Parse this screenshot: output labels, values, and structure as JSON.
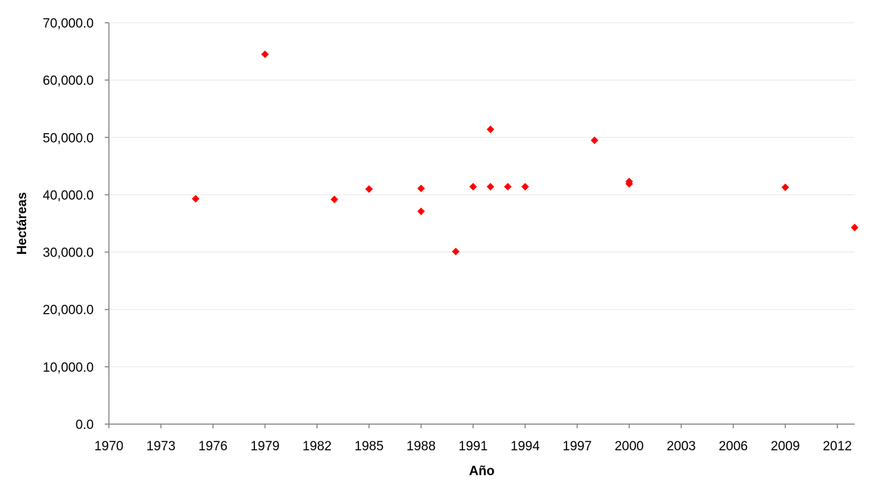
{
  "chart_data": {
    "type": "scatter",
    "title": "",
    "xlabel": "Año",
    "ylabel": "Hectáreas",
    "xlim": [
      1970,
      2013
    ],
    "ylim": [
      0,
      70000
    ],
    "x_ticks": [
      1970,
      1973,
      1976,
      1979,
      1982,
      1985,
      1988,
      1991,
      1994,
      1997,
      2000,
      2003,
      2006,
      2009,
      2012
    ],
    "x_tick_labels": [
      "1970",
      "1973",
      "1976",
      "1979",
      "1982",
      "1985",
      "1988",
      "1991",
      "1994",
      "1997",
      "2000",
      "2003",
      "2006",
      "2009",
      "2012"
    ],
    "y_ticks": [
      0,
      10000,
      20000,
      30000,
      40000,
      50000,
      60000,
      70000
    ],
    "y_tick_labels": [
      "0.0",
      "10,000.0",
      "20,000.0",
      "30,000.0",
      "40,000.0",
      "50,000.0",
      "60,000.0",
      "70,000.0"
    ],
    "grid": "horizontal",
    "legend": "none",
    "marker": "diamond",
    "marker_color": "#FF0000",
    "series": [
      {
        "x": [
          1975,
          1979,
          1983,
          1985,
          1988,
          1988,
          1990,
          1991,
          1992,
          1992,
          1993,
          1994,
          1998,
          2000,
          2000,
          2009,
          2013
        ],
        "y": [
          39300,
          64500,
          39200,
          41000,
          41100,
          37100,
          30100,
          41400,
          51400,
          41400,
          41400,
          41400,
          49500,
          42300,
          41900,
          41300,
          34300
        ]
      }
    ]
  }
}
